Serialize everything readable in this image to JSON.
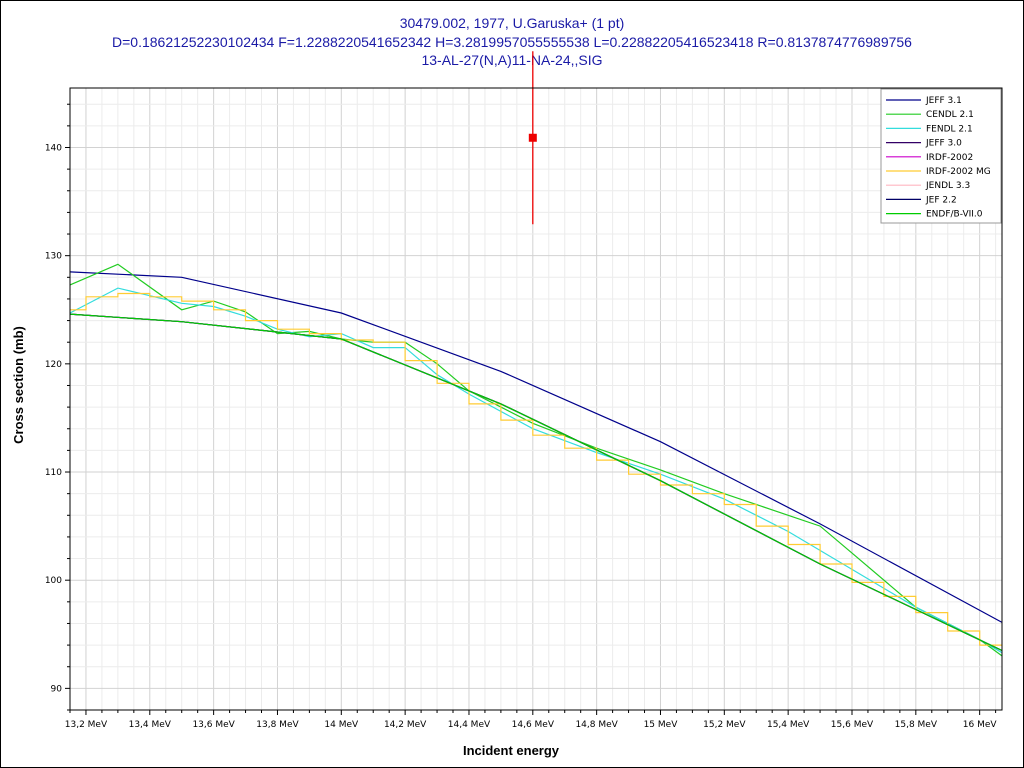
{
  "header": {
    "title_line1": "30479.002, 1977, U.Garuska+ (1 pt)",
    "title_line2": "D=0.18621252230102434 F=1.2288220541652342 H=3.2819957055555538 L=0.22882205416523418 R=0.8137874776989756",
    "title_line3": "13-AL-27(N,A)11-NA-24,,SIG"
  },
  "chart_data": {
    "type": "line",
    "xlabel": "Incident energy",
    "ylabel": "Cross section (mb)",
    "xlim": [
      13.15,
      16.07
    ],
    "ylim": [
      88,
      145.5
    ],
    "x_ticks": [
      13.2,
      13.4,
      13.6,
      13.8,
      14.0,
      14.2,
      14.4,
      14.6,
      14.8,
      15.0,
      15.2,
      15.4,
      15.6,
      15.8,
      16.0
    ],
    "x_tick_labels": [
      "13,2 MeV",
      "13,4 MeV",
      "13,6 MeV",
      "13,8 MeV",
      "14 MeV",
      "14,2 MeV",
      "14,4 MeV",
      "14,6 MeV",
      "14,8 MeV",
      "15 MeV",
      "15,2 MeV",
      "15,4 MeV",
      "15,6 MeV",
      "15,8 MeV",
      "16 MeV"
    ],
    "y_ticks": [
      90,
      100,
      110,
      120,
      130,
      140
    ],
    "y_tick_labels": [
      "90",
      "100",
      "110",
      "120",
      "130",
      "140"
    ],
    "grid": true,
    "legend_position": "top-right",
    "series": [
      {
        "name": "JEFF 3.1",
        "color": "#00008b",
        "step": false,
        "x": [
          13.15,
          13.5,
          14.0,
          14.5,
          15.0,
          15.5,
          16.07
        ],
        "y": [
          128.5,
          128.0,
          124.7,
          119.3,
          112.8,
          105.2,
          96.1
        ]
      },
      {
        "name": "CENDL 2.1",
        "color": "#22cc22",
        "step": false,
        "x": [
          13.15,
          13.3,
          13.5,
          13.6,
          13.7,
          13.8,
          13.9,
          14.0,
          14.1,
          14.2,
          14.3,
          14.4,
          14.6,
          14.8,
          15.0,
          15.2,
          15.4,
          15.5,
          15.6,
          15.8,
          16.0,
          16.07
        ],
        "y": [
          127.3,
          129.2,
          125.0,
          125.8,
          124.8,
          122.8,
          123.0,
          122.3,
          122.0,
          122.0,
          120.0,
          117.5,
          114.5,
          112.2,
          110.2,
          108.0,
          106.0,
          105.0,
          102.5,
          97.5,
          94.5,
          93.0
        ]
      },
      {
        "name": "FENDL 2.1",
        "color": "#33dddd",
        "step": false,
        "x": [
          13.15,
          13.3,
          13.5,
          13.6,
          13.7,
          13.8,
          13.9,
          14.0,
          14.1,
          14.2,
          14.3,
          14.4,
          14.6,
          14.8,
          15.0,
          15.2,
          15.4,
          15.6,
          15.8,
          16.0,
          16.07
        ],
        "y": [
          124.7,
          127.0,
          125.6,
          125.3,
          124.4,
          123.2,
          122.5,
          122.8,
          121.5,
          121.5,
          119.0,
          117.2,
          114.0,
          111.8,
          109.8,
          107.5,
          104.5,
          101.0,
          97.5,
          94.5,
          93.3
        ]
      },
      {
        "name": "JEFF 3.0",
        "color": "#330066",
        "step": false,
        "x": [
          13.15,
          13.5,
          14.0,
          14.5,
          15.0,
          15.5,
          16.07
        ],
        "y": [
          124.6,
          123.9,
          122.3,
          116.3,
          109.2,
          101.5,
          93.5
        ]
      },
      {
        "name": "IRDF-2002",
        "color": "#cc00cc",
        "step": false,
        "x": [
          13.15,
          13.5,
          14.0,
          14.5,
          15.0,
          15.5,
          16.07
        ],
        "y": [
          124.6,
          123.9,
          122.3,
          116.3,
          109.2,
          101.5,
          93.5
        ]
      },
      {
        "name": "IRDF-2002 MG",
        "color": "#ffcc33",
        "step": true,
        "x": [
          13.15,
          13.2,
          13.3,
          13.4,
          13.5,
          13.6,
          13.7,
          13.8,
          13.9,
          14.0,
          14.1,
          14.2,
          14.3,
          14.4,
          14.5,
          14.6,
          14.7,
          14.8,
          14.9,
          15.0,
          15.1,
          15.2,
          15.3,
          15.4,
          15.5,
          15.6,
          15.7,
          15.8,
          15.9,
          16.0,
          16.07
        ],
        "y": [
          125.0,
          126.2,
          126.5,
          126.2,
          125.8,
          125.0,
          124.0,
          123.2,
          122.8,
          122.2,
          122.0,
          120.3,
          118.2,
          116.3,
          114.8,
          113.4,
          112.2,
          111.1,
          109.8,
          108.8,
          108.0,
          107.0,
          105.0,
          103.3,
          101.5,
          99.8,
          98.5,
          97.0,
          95.3,
          94.0,
          94.0
        ]
      },
      {
        "name": "JENDL 3.3",
        "color": "#ffb6c1",
        "step": false,
        "x": [
          13.15,
          13.5,
          14.0,
          14.5,
          15.0,
          15.5,
          16.07
        ],
        "y": [
          124.6,
          123.9,
          122.3,
          116.3,
          109.2,
          101.5,
          93.5
        ]
      },
      {
        "name": "JEF 2.2",
        "color": "#000066",
        "step": false,
        "x": [
          13.15,
          13.5,
          14.0,
          14.5,
          15.0,
          15.5,
          16.07
        ],
        "y": [
          124.6,
          123.9,
          122.3,
          116.3,
          109.2,
          101.5,
          93.5
        ]
      },
      {
        "name": "ENDF/B-VII.0",
        "color": "#00cc00",
        "step": false,
        "x": [
          13.15,
          13.5,
          14.0,
          14.5,
          15.0,
          15.5,
          16.07
        ],
        "y": [
          124.6,
          123.9,
          122.3,
          116.3,
          109.2,
          101.5,
          93.5
        ]
      }
    ],
    "experimental": {
      "color": "#ee0000",
      "points": [
        {
          "x": 14.6,
          "y": 140.9,
          "yerr": 8.0
        }
      ]
    }
  }
}
